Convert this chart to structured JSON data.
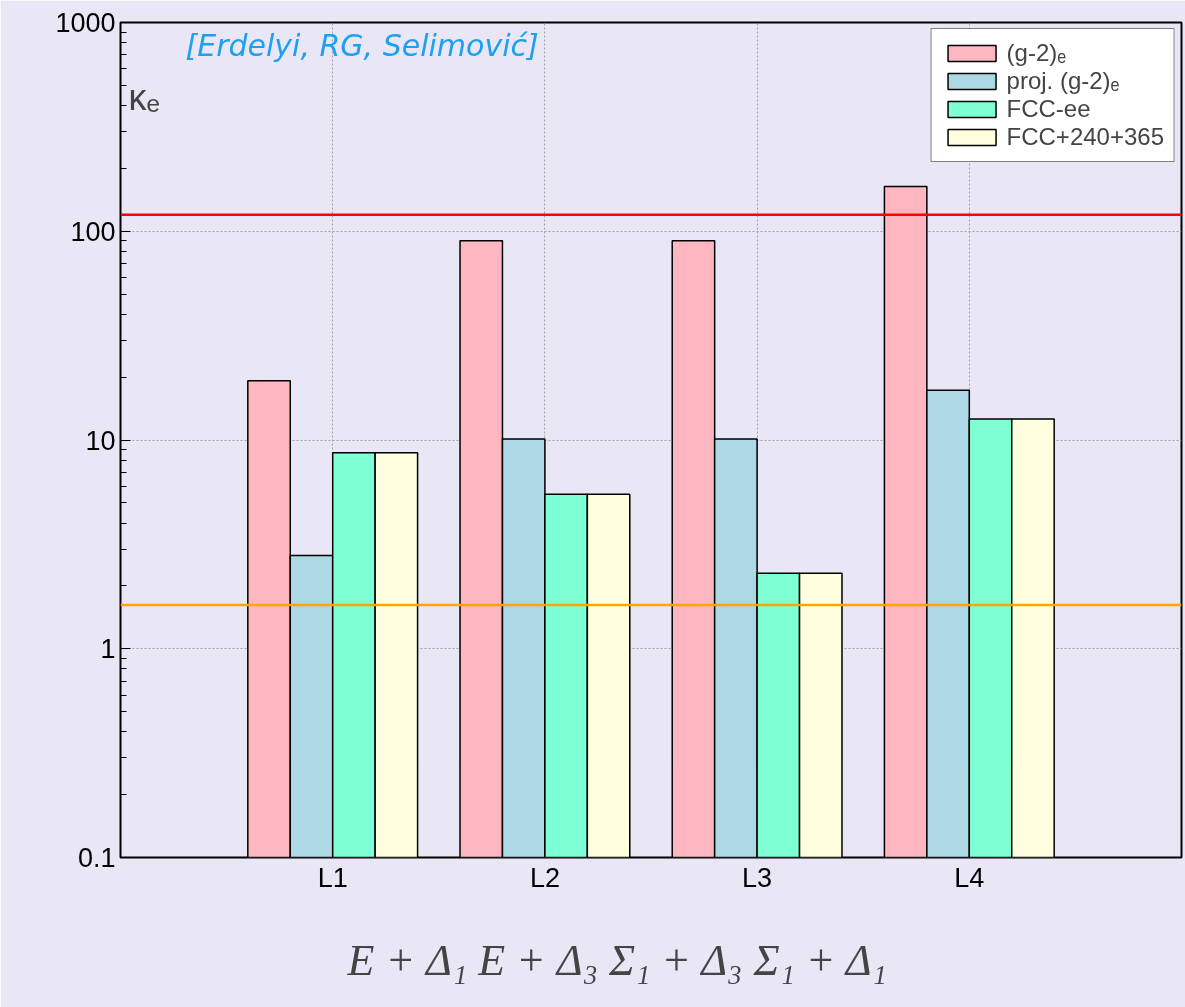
{
  "chart_data": {
    "type": "bar",
    "ylabel": "κₑ",
    "xlabel": "E + Δ₁   E + Δ₃   Σ₁ + Δ₃   Σ₁ + Δ₁",
    "annotations": [
      "[Erdelyi, RG, Selimović]"
    ],
    "categories": [
      "L1",
      "L2",
      "L3",
      "L4"
    ],
    "series": [
      {
        "name": "(g-2)ₑ",
        "color": "#ffb6c1",
        "values": [
          19.2,
          90,
          90,
          164
        ]
      },
      {
        "name": "proj. (g-2)ₑ",
        "color": "#add8e6",
        "values": [
          2.8,
          10.1,
          10.1,
          17.3
        ]
      },
      {
        "name": "FCC-ee",
        "color": "#7fffd4",
        "values": [
          8.7,
          5.5,
          2.3,
          12.6
        ]
      },
      {
        "name": "FCC+240+365",
        "color": "#ffffe0",
        "values": [
          8.7,
          5.5,
          2.3,
          12.6
        ]
      }
    ],
    "log": true,
    "ylim": [
      0.1,
      1000
    ],
    "yticks": [
      0.1,
      1,
      10,
      100,
      1000
    ],
    "ref_lines": [
      {
        "axis": "y",
        "value": 120,
        "label": null,
        "color": "#ff0000"
      },
      {
        "axis": "y",
        "value": 1.62,
        "label": null,
        "color": "#ffa500"
      }
    ],
    "grid": true,
    "legend": "top right"
  }
}
